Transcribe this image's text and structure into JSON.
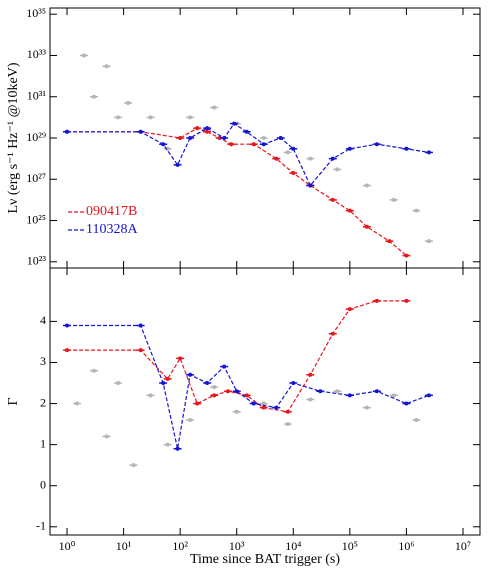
{
  "chart_data": [
    {
      "type": "line",
      "ylabel": "Lν (erg s⁻¹ Hz⁻¹ @10keV)",
      "log_x": true,
      "log_y": true,
      "xlim": [
        0.5,
        20000000
      ],
      "ylim": [
        5e+22,
        2e+35
      ],
      "xticks": [
        1,
        10,
        100,
        1000,
        10000,
        100000,
        1000000,
        10000000
      ],
      "yticks": [
        {
          "value": 1e+23,
          "label": "10²³"
        },
        {
          "value": 1e+25,
          "label": "10²⁵"
        },
        {
          "value": 1e+27,
          "label": "10²⁷"
        },
        {
          "value": 1e+29,
          "label": "10²⁹"
        },
        {
          "value": 1e+31,
          "label": "10³¹"
        },
        {
          "value": 1e+33,
          "label": "10³³"
        },
        {
          "value": 1e+35,
          "label": "10³⁵"
        }
      ],
      "legend": "lower left",
      "series": [
        {
          "color": "#b4b4b4",
          "mode": "markers",
          "x": [
            2,
            3,
            5,
            8,
            12,
            30,
            60,
            150,
            400,
            1000,
            3000,
            8000,
            20000,
            60000,
            200000,
            600000,
            1500000,
            2500000
          ],
          "values": [
            1e+33,
            1e+31,
            3e+32,
            1e+30,
            5e+30,
            1e+30,
            3e+28,
            1e+30,
            3e+30,
            5e+29,
            1e+29,
            2e+28,
            1e+28,
            3e+27,
            5e+26,
            1e+26,
            3e+25,
            1e+24
          ]
        },
        {
          "name": "090417B",
          "color": "#e8141e",
          "mode": "lines+markers",
          "x": [
            1,
            20,
            100,
            200,
            300,
            500,
            800,
            2000,
            5000,
            10000,
            20000,
            50000,
            100000,
            200000,
            500000,
            1000000
          ],
          "values": [
            2e+29,
            2e+29,
            1e+29,
            3e+29,
            2e+29,
            1e+29,
            5e+28,
            5e+28,
            1e+28,
            2e+27,
            5e+26,
            1e+26,
            3e+25,
            5e+24,
            1e+24,
            2e+23
          ]
        },
        {
          "name": "110328A",
          "color": "#1414d2",
          "mode": "lines+markers",
          "x": [
            1,
            20,
            50,
            90,
            150,
            300,
            600,
            900,
            1500,
            3000,
            6000,
            10000,
            20000,
            50000,
            100000,
            300000,
            1000000,
            2500000
          ],
          "values": [
            2e+29,
            2e+29,
            5e+28,
            5e+27,
            1e+29,
            3e+29,
            1e+29,
            5e+29,
            2e+29,
            5e+28,
            1e+29,
            3e+28,
            5e+26,
            1e+28,
            3e+28,
            5e+28,
            3e+28,
            2e+28
          ]
        }
      ]
    },
    {
      "type": "line",
      "xlabel": "Time since BAT trigger (s)",
      "ylabel": "Γ",
      "log_x": true,
      "log_y": false,
      "xlim": [
        0.5,
        20000000
      ],
      "ylim": [
        -1.2,
        5.3
      ],
      "xticks": [
        {
          "value": 1,
          "label": "10⁰"
        },
        {
          "value": 10,
          "label": "10¹"
        },
        {
          "value": 100,
          "label": "10²"
        },
        {
          "value": 1000,
          "label": "10³"
        },
        {
          "value": 10000,
          "label": "10⁴"
        },
        {
          "value": 100000,
          "label": "10⁵"
        },
        {
          "value": 1000000,
          "label": "10⁶"
        },
        {
          "value": 10000000,
          "label": "10⁷"
        }
      ],
      "yticks": [
        -1,
        0,
        1,
        2,
        3,
        4
      ],
      "series": [
        {
          "color": "#b4b4b4",
          "mode": "markers",
          "x": [
            1.5,
            3,
            5,
            8,
            15,
            30,
            60,
            150,
            400,
            1000,
            3000,
            8000,
            20000,
            60000,
            200000,
            600000,
            1500000
          ],
          "values": [
            2.0,
            2.8,
            1.2,
            2.5,
            0.5,
            2.2,
            1.0,
            1.6,
            2.4,
            1.8,
            2.0,
            1.5,
            2.1,
            2.3,
            1.9,
            2.2,
            1.6
          ]
        },
        {
          "name": "090417B",
          "color": "#e8141e",
          "mode": "lines+markers",
          "x": [
            1,
            20,
            60,
            100,
            200,
            400,
            700,
            1500,
            3000,
            8000,
            20000,
            50000,
            100000,
            300000,
            1000000
          ],
          "values": [
            3.3,
            3.3,
            2.6,
            3.1,
            2.0,
            2.2,
            2.3,
            2.2,
            1.9,
            1.8,
            2.7,
            3.7,
            4.3,
            4.5,
            4.5
          ]
        },
        {
          "name": "110328A",
          "color": "#1414d2",
          "mode": "lines+markers",
          "x": [
            1,
            20,
            50,
            90,
            150,
            300,
            600,
            1000,
            2000,
            5000,
            10000,
            30000,
            100000,
            300000,
            1000000,
            2500000
          ],
          "values": [
            3.9,
            3.9,
            2.5,
            0.9,
            2.7,
            2.5,
            2.9,
            2.3,
            2.0,
            1.9,
            2.5,
            2.3,
            2.2,
            2.3,
            2.0,
            2.2
          ]
        }
      ]
    }
  ]
}
